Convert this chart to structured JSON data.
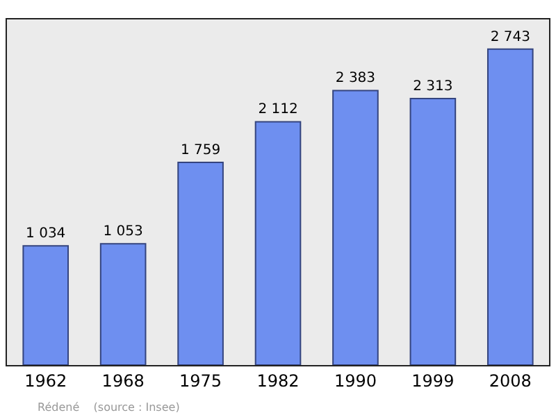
{
  "chart_data": {
    "type": "bar",
    "categories": [
      "1962",
      "1968",
      "1975",
      "1982",
      "1990",
      "1999",
      "2008"
    ],
    "values": [
      1034,
      1053,
      1759,
      2112,
      2383,
      2313,
      2743
    ],
    "value_labels": [
      "1 034",
      "1 053",
      "1 759",
      "2 112",
      "2 383",
      "2 313",
      "2 743"
    ],
    "color": "#6e8ff0",
    "ylim": [
      0,
      3000
    ],
    "tick_labels": "x",
    "grid": false,
    "annotations": [
      "Rédené    (source : Insee)"
    ]
  }
}
